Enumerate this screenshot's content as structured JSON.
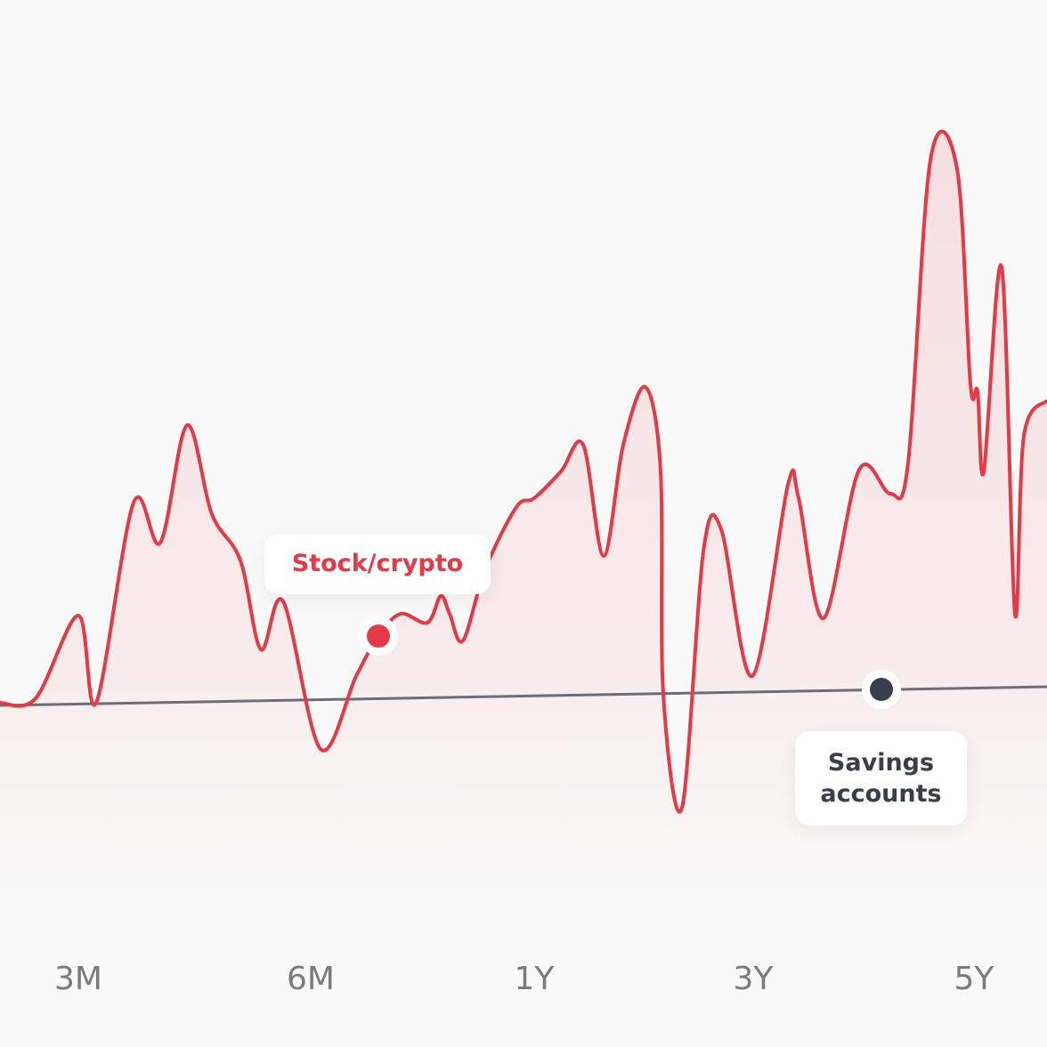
{
  "x_labels": [
    "3M",
    "6M",
    "1Y",
    "3Y",
    "5Y"
  ],
  "callouts": {
    "stock": "Stock/crypto",
    "savings": "Savings accounts"
  }
}
